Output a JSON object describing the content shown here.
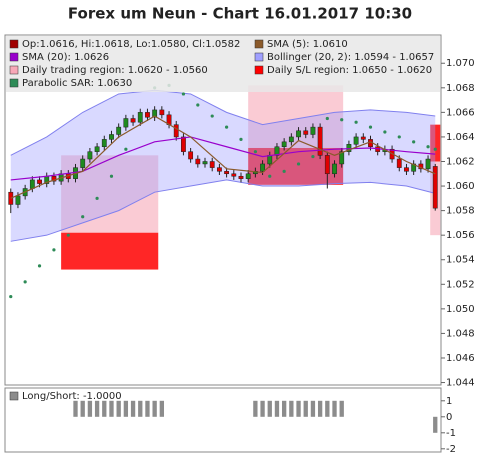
{
  "chart_data": [
    {
      "type": "candlestick",
      "title": "Forex um Neun - Chart 16.01.2017 10:30",
      "xlim": [
        -0.8,
        59.8
      ],
      "ylim": [
        1.0438,
        1.0723
      ],
      "yticks": [
        1.044,
        1.046,
        1.048,
        {
          "value": 1.05,
          "label": "1.050"
        },
        1.052,
        1.054,
        1.056,
        1.058,
        {
          "value": 1.06,
          "label": "1.060"
        },
        1.062,
        1.064,
        1.066,
        1.068,
        {
          "value": 1.07,
          "label": "1.070"
        }
      ],
      "series": {
        "name": "Op:1.0616, Hi:1.0618, Lo:1.0580, Cl:1.0582",
        "color": "#a00000",
        "up_color": "#1f8a1f",
        "down_color": "#e00000",
        "open": [
          1.0595,
          1.0585,
          1.0592,
          1.0598,
          1.0605,
          1.0602,
          1.0608,
          1.0604,
          1.061,
          1.0606,
          1.0615,
          1.0622,
          1.0628,
          1.0632,
          1.0638,
          1.0642,
          1.0648,
          1.0655,
          1.0652,
          1.066,
          1.0656,
          1.0662,
          1.0658,
          1.065,
          1.064,
          1.0628,
          1.0622,
          1.0618,
          1.062,
          1.0615,
          1.0612,
          1.061,
          1.0608,
          1.0606,
          1.061,
          1.0612,
          1.0618,
          1.0625,
          1.0632,
          1.0636,
          1.064,
          1.0645,
          1.0642,
          1.0648,
          1.0625,
          1.061,
          1.0618,
          1.0628,
          1.0634,
          1.064,
          1.0638,
          1.0632,
          1.0628,
          1.063,
          1.0622,
          1.0615,
          1.0612,
          1.0618,
          1.0614,
          1.0616
        ],
        "high": [
          1.0598,
          1.0595,
          1.0601,
          1.0608,
          1.0608,
          1.0611,
          1.0611,
          1.0613,
          1.0613,
          1.0618,
          1.0625,
          1.0631,
          1.0635,
          1.0641,
          1.0645,
          1.0651,
          1.0658,
          1.0658,
          1.0663,
          1.0663,
          1.0665,
          1.0665,
          1.0661,
          1.0653,
          1.0643,
          1.0631,
          1.0625,
          1.0623,
          1.0623,
          1.0618,
          1.0615,
          1.0613,
          1.0611,
          1.0613,
          1.0615,
          1.0621,
          1.0628,
          1.0635,
          1.0639,
          1.0643,
          1.0648,
          1.0648,
          1.0651,
          1.0651,
          1.0628,
          1.0621,
          1.0631,
          1.0637,
          1.0643,
          1.0643,
          1.0641,
          1.0635,
          1.0633,
          1.0633,
          1.0625,
          1.0618,
          1.0621,
          1.0621,
          1.0625,
          1.0618
        ],
        "low": [
          1.0578,
          1.0582,
          1.0589,
          1.0595,
          1.0599,
          1.0599,
          1.0601,
          1.0601,
          1.0603,
          1.0603,
          1.0612,
          1.0619,
          1.0625,
          1.0629,
          1.0635,
          1.0639,
          1.0645,
          1.0649,
          1.0649,
          1.0653,
          1.0653,
          1.0655,
          1.0647,
          1.0637,
          1.0625,
          1.0619,
          1.0615,
          1.0615,
          1.0612,
          1.0609,
          1.0607,
          1.0605,
          1.0603,
          1.0603,
          1.0607,
          1.0609,
          1.0615,
          1.0622,
          1.0629,
          1.0633,
          1.0637,
          1.0639,
          1.0639,
          1.0622,
          1.0598,
          1.0607,
          1.0615,
          1.0625,
          1.0631,
          1.0635,
          1.0629,
          1.0625,
          1.0625,
          1.0619,
          1.0612,
          1.0609,
          1.0609,
          1.0611,
          1.0611,
          1.058
        ],
        "close": [
          1.0585,
          1.0592,
          1.0598,
          1.0605,
          1.0602,
          1.0608,
          1.0604,
          1.061,
          1.0606,
          1.0615,
          1.0622,
          1.0628,
          1.0632,
          1.0638,
          1.0642,
          1.0648,
          1.0655,
          1.0652,
          1.066,
          1.0656,
          1.0662,
          1.0658,
          1.065,
          1.064,
          1.0628,
          1.0622,
          1.0618,
          1.062,
          1.0615,
          1.0612,
          1.061,
          1.0608,
          1.0606,
          1.061,
          1.0612,
          1.0618,
          1.0625,
          1.0632,
          1.0636,
          1.064,
          1.0645,
          1.0642,
          1.0648,
          1.0625,
          1.061,
          1.0618,
          1.0628,
          1.0634,
          1.064,
          1.0638,
          1.0632,
          1.0628,
          1.063,
          1.0622,
          1.0615,
          1.0612,
          1.0618,
          1.0614,
          1.0622,
          1.0582
        ]
      },
      "sma5": {
        "name": "SMA (5): 1.0610",
        "color": "#8b5a2b",
        "x": [
          0,
          5,
          10,
          15,
          20,
          25,
          30,
          35,
          40,
          45,
          50,
          55,
          59
        ],
        "values": [
          1.059,
          1.0603,
          1.0612,
          1.064,
          1.0657,
          1.064,
          1.0614,
          1.0611,
          1.0637,
          1.0625,
          1.0636,
          1.062,
          1.061
        ]
      },
      "sma20": {
        "name": "SMA (20): 1.0626",
        "color": "#9900cc",
        "x": [
          0,
          5,
          10,
          15,
          20,
          25,
          30,
          35,
          40,
          45,
          50,
          55,
          59
        ],
        "values": [
          1.0605,
          1.0608,
          1.0612,
          1.0625,
          1.0636,
          1.064,
          1.0632,
          1.0624,
          1.0628,
          1.063,
          1.0631,
          1.0628,
          1.0626
        ]
      },
      "bollinger": {
        "name": "Bollinger (20, 2): 1.0594 - 1.0657",
        "color": "#a0a0ff",
        "x": [
          0,
          5,
          10,
          15,
          20,
          25,
          30,
          35,
          40,
          45,
          50,
          55,
          59
        ],
        "upper": [
          1.0625,
          1.064,
          1.066,
          1.0675,
          1.0678,
          1.0675,
          1.066,
          1.065,
          1.0655,
          1.066,
          1.0662,
          1.066,
          1.0657
        ],
        "lower": [
          1.0555,
          1.056,
          1.057,
          1.058,
          1.0595,
          1.06,
          1.0605,
          1.06,
          1.06,
          1.0602,
          1.0603,
          1.06,
          1.0594
        ]
      },
      "sar": {
        "name": "Parabolic SAR: 1.0630",
        "color": "#2e8b57",
        "x": [
          0,
          2,
          4,
          6,
          8,
          10,
          12,
          14,
          16,
          18,
          20,
          22,
          24,
          26,
          28,
          30,
          32,
          34,
          36,
          38,
          40,
          42,
          44,
          46,
          48,
          50,
          52,
          54,
          56,
          58,
          59
        ],
        "values": [
          1.051,
          1.0522,
          1.0535,
          1.0548,
          1.056,
          1.0575,
          1.059,
          1.0608,
          1.063,
          1.0655,
          1.068,
          1.0682,
          1.0675,
          1.0666,
          1.0657,
          1.0648,
          1.0638,
          1.0628,
          1.0608,
          1.0612,
          1.0618,
          1.0624,
          1.0655,
          1.0654,
          1.0652,
          1.0648,
          1.0644,
          1.064,
          1.0636,
          1.0632,
          1.063
        ]
      },
      "trading_region": {
        "name": "Daily trading region: 1.0620 - 1.0560",
        "color": "#f7a8b8"
      },
      "sl_region": {
        "name": "Daily S/L region: 1.0650 - 1.0620",
        "color": "#ff0000"
      },
      "regions": [
        {
          "x": [
            7,
            20.5
          ],
          "trading": [
            1.0562,
            1.0625
          ],
          "sl": [
            1.0532,
            1.0562
          ]
        },
        {
          "x": [
            33,
            46.2
          ],
          "trading": [
            1.0631,
            1.0682
          ],
          "sl": [
            1.0601,
            1.0631
          ]
        },
        {
          "x": [
            58.3,
            59.7
          ],
          "trading": [
            1.056,
            1.062
          ],
          "sl": [
            1.062,
            1.065
          ]
        }
      ]
    },
    {
      "type": "bar",
      "xlim": [
        -0.8,
        59.8
      ],
      "ylim": [
        -2.2,
        1.8
      ],
      "yticks": [
        1,
        0,
        -1,
        -2
      ],
      "series": {
        "name": "Long/Short: -1.0000",
        "color": "#8c8c8c",
        "values": [
          0,
          0,
          0,
          0,
          0,
          0,
          0,
          0,
          0,
          1,
          1,
          1,
          1,
          1,
          1,
          1,
          1,
          1,
          1,
          1,
          1,
          1,
          0,
          0,
          0,
          0,
          0,
          0,
          0,
          0,
          0,
          0,
          0,
          0,
          1,
          1,
          1,
          1,
          1,
          1,
          1,
          1,
          1,
          1,
          1,
          1,
          1,
          0,
          0,
          0,
          0,
          0,
          0,
          0,
          0,
          0,
          0,
          0,
          0,
          -1
        ]
      }
    }
  ]
}
